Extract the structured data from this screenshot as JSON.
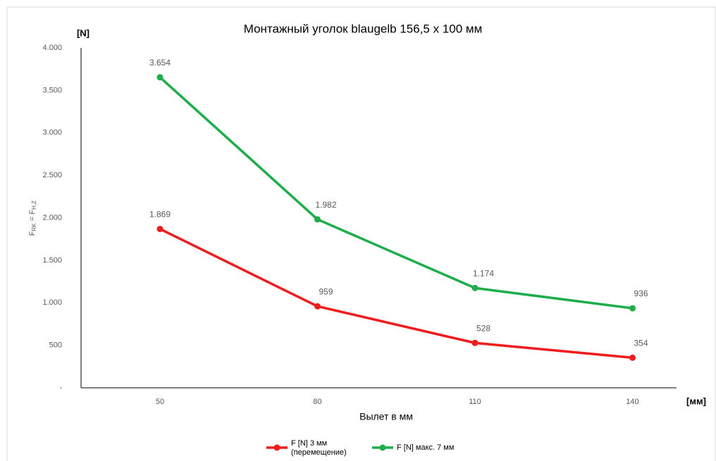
{
  "chart_data": {
    "type": "line",
    "title": "Монтажный уголок blaugelb 156,5 x 100 мм",
    "y_unit": "[N]",
    "x_unit": "[мм]",
    "x_label": "Вылет в мм",
    "y_label": [
      "F",
      "RK",
      " = F",
      "H,Z"
    ],
    "categories": [
      "50",
      "80",
      "110",
      "140"
    ],
    "series": [
      {
        "name": "F [N] 3 мм (перемещение)",
        "color": "#ee1c1c",
        "values": [
          1869,
          959,
          528,
          354
        ],
        "value_labels": [
          "1.869",
          "959",
          "528",
          "354"
        ]
      },
      {
        "name": "F [N] макс. 7 мм",
        "color": "#1fad4b",
        "values": [
          3654,
          1982,
          1174,
          936
        ],
        "value_labels": [
          "3.654",
          "1.982",
          "1.174",
          "936"
        ]
      }
    ],
    "ylim": [
      0,
      4000
    ],
    "yticks": [
      {
        "value": 0,
        "label": "-"
      },
      500,
      {
        "value": 1000,
        "label": "1.000"
      },
      {
        "value": 1500,
        "label": "1.500"
      },
      {
        "value": 2000,
        "label": "2.000"
      },
      {
        "value": 2500,
        "label": "2.500"
      },
      {
        "value": 3000,
        "label": "3.000"
      },
      {
        "value": 3500,
        "label": "3.500"
      },
      {
        "value": 4000,
        "label": "4.000"
      }
    ],
    "grid": false,
    "legend": "bottom"
  }
}
